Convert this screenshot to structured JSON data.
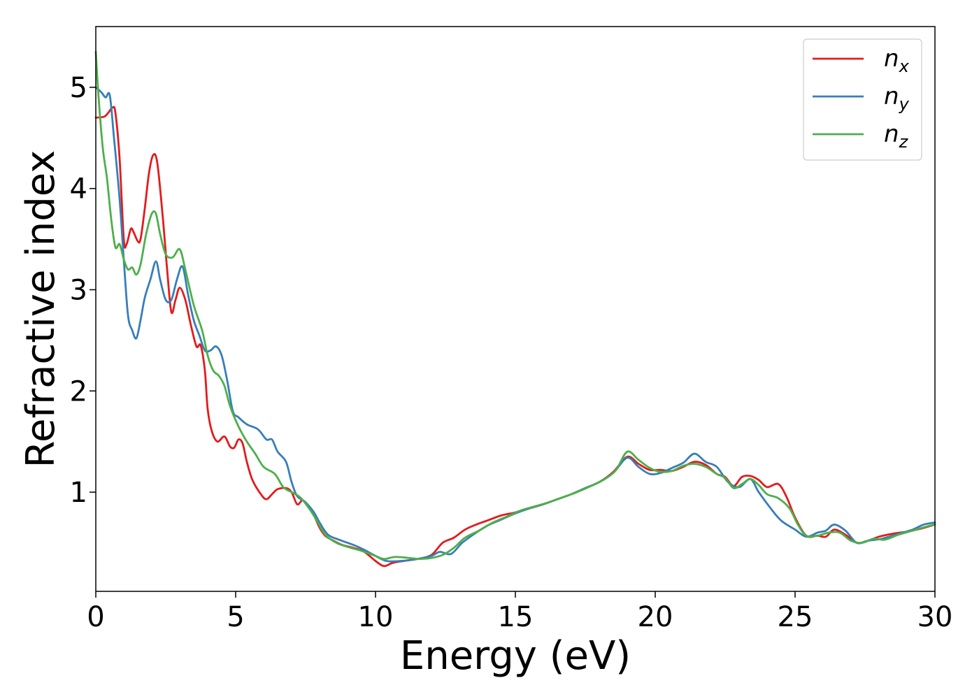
{
  "chart_data": {
    "type": "line",
    "title": "",
    "xlabel": "Energy (eV)",
    "ylabel": "Refractive index",
    "xlim": [
      0,
      30
    ],
    "ylim": [
      0.02,
      5.6
    ],
    "xticks": [
      "0",
      "5",
      "10",
      "15",
      "20",
      "25",
      "30"
    ],
    "yticks": [
      "1",
      "2",
      "3",
      "4",
      "5"
    ],
    "grid": false,
    "legend_position": "top-right",
    "series": [
      {
        "name": "n",
        "subscript": "x",
        "color": "#e41a1c",
        "points": [
          [
            0,
            4.7
          ],
          [
            0.3,
            4.71
          ],
          [
            0.45,
            4.75
          ],
          [
            0.6,
            4.8
          ],
          [
            0.7,
            4.75
          ],
          [
            0.85,
            4.3
          ],
          [
            1.0,
            3.5
          ],
          [
            1.1,
            3.45
          ],
          [
            1.25,
            3.6
          ],
          [
            1.35,
            3.57
          ],
          [
            1.5,
            3.48
          ],
          [
            1.6,
            3.5
          ],
          [
            1.75,
            3.8
          ],
          [
            1.9,
            4.15
          ],
          [
            2.05,
            4.33
          ],
          [
            2.2,
            4.25
          ],
          [
            2.4,
            3.7
          ],
          [
            2.55,
            3.2
          ],
          [
            2.7,
            2.78
          ],
          [
            2.85,
            2.9
          ],
          [
            3.0,
            3.02
          ],
          [
            3.2,
            2.9
          ],
          [
            3.4,
            2.65
          ],
          [
            3.6,
            2.44
          ],
          [
            3.75,
            2.45
          ],
          [
            3.9,
            2.2
          ],
          [
            4.0,
            1.82
          ],
          [
            4.15,
            1.6
          ],
          [
            4.35,
            1.5
          ],
          [
            4.6,
            1.55
          ],
          [
            4.8,
            1.45
          ],
          [
            4.95,
            1.44
          ],
          [
            5.1,
            1.52
          ],
          [
            5.25,
            1.48
          ],
          [
            5.4,
            1.3
          ],
          [
            5.6,
            1.12
          ],
          [
            5.9,
            0.98
          ],
          [
            6.1,
            0.93
          ],
          [
            6.3,
            0.98
          ],
          [
            6.5,
            1.03
          ],
          [
            6.8,
            1.04
          ],
          [
            7.0,
            1.0
          ],
          [
            7.2,
            0.88
          ],
          [
            7.4,
            0.92
          ],
          [
            7.6,
            0.85
          ],
          [
            7.8,
            0.77
          ],
          [
            8.0,
            0.65
          ],
          [
            8.2,
            0.57
          ],
          [
            8.5,
            0.52
          ],
          [
            8.8,
            0.48
          ],
          [
            9.2,
            0.45
          ],
          [
            9.6,
            0.41
          ],
          [
            10.0,
            0.32
          ],
          [
            10.3,
            0.27
          ],
          [
            10.6,
            0.3
          ],
          [
            11.0,
            0.32
          ],
          [
            11.5,
            0.34
          ],
          [
            12.0,
            0.38
          ],
          [
            12.4,
            0.5
          ],
          [
            12.8,
            0.55
          ],
          [
            13.2,
            0.63
          ],
          [
            13.6,
            0.68
          ],
          [
            14.0,
            0.72
          ],
          [
            14.5,
            0.77
          ],
          [
            15.0,
            0.8
          ],
          [
            15.5,
            0.84
          ],
          [
            16.0,
            0.88
          ],
          [
            16.5,
            0.93
          ],
          [
            17.0,
            0.98
          ],
          [
            17.5,
            1.04
          ],
          [
            18.0,
            1.1
          ],
          [
            18.5,
            1.2
          ],
          [
            19.0,
            1.35
          ],
          [
            19.4,
            1.28
          ],
          [
            19.8,
            1.22
          ],
          [
            20.2,
            1.22
          ],
          [
            20.6,
            1.21
          ],
          [
            21.0,
            1.25
          ],
          [
            21.4,
            1.3
          ],
          [
            21.8,
            1.27
          ],
          [
            22.2,
            1.18
          ],
          [
            22.5,
            1.15
          ],
          [
            22.8,
            1.06
          ],
          [
            23.1,
            1.15
          ],
          [
            23.4,
            1.16
          ],
          [
            23.7,
            1.12
          ],
          [
            24.0,
            1.05
          ],
          [
            24.4,
            1.08
          ],
          [
            24.7,
            0.95
          ],
          [
            25.0,
            0.75
          ],
          [
            25.4,
            0.57
          ],
          [
            25.8,
            0.57
          ],
          [
            26.1,
            0.56
          ],
          [
            26.4,
            0.63
          ],
          [
            26.8,
            0.58
          ],
          [
            27.2,
            0.5
          ],
          [
            27.6,
            0.52
          ],
          [
            28.0,
            0.56
          ],
          [
            28.5,
            0.59
          ],
          [
            29.0,
            0.61
          ],
          [
            29.5,
            0.64
          ],
          [
            30.0,
            0.68
          ]
        ]
      },
      {
        "name": "n",
        "subscript": "y",
        "color": "#377eb8",
        "points": [
          [
            0,
            5.0
          ],
          [
            0.2,
            4.95
          ],
          [
            0.35,
            4.9
          ],
          [
            0.5,
            4.92
          ],
          [
            0.65,
            4.5
          ],
          [
            0.85,
            3.9
          ],
          [
            1.0,
            3.3
          ],
          [
            1.15,
            2.75
          ],
          [
            1.3,
            2.6
          ],
          [
            1.45,
            2.52
          ],
          [
            1.6,
            2.7
          ],
          [
            1.75,
            2.92
          ],
          [
            1.95,
            3.1
          ],
          [
            2.15,
            3.28
          ],
          [
            2.3,
            3.1
          ],
          [
            2.5,
            2.9
          ],
          [
            2.7,
            2.9
          ],
          [
            2.9,
            3.1
          ],
          [
            3.1,
            3.23
          ],
          [
            3.3,
            2.95
          ],
          [
            3.5,
            2.7
          ],
          [
            3.7,
            2.55
          ],
          [
            3.9,
            2.4
          ],
          [
            4.1,
            2.4
          ],
          [
            4.3,
            2.44
          ],
          [
            4.5,
            2.35
          ],
          [
            4.7,
            2.1
          ],
          [
            4.9,
            1.8
          ],
          [
            5.1,
            1.74
          ],
          [
            5.4,
            1.67
          ],
          [
            5.8,
            1.62
          ],
          [
            6.1,
            1.52
          ],
          [
            6.3,
            1.52
          ],
          [
            6.5,
            1.4
          ],
          [
            6.8,
            1.3
          ],
          [
            7.0,
            1.1
          ],
          [
            7.2,
            0.96
          ],
          [
            7.5,
            0.9
          ],
          [
            7.8,
            0.8
          ],
          [
            8.0,
            0.7
          ],
          [
            8.3,
            0.58
          ],
          [
            8.7,
            0.53
          ],
          [
            9.2,
            0.48
          ],
          [
            9.6,
            0.43
          ],
          [
            10.0,
            0.37
          ],
          [
            10.4,
            0.32
          ],
          [
            10.9,
            0.32
          ],
          [
            11.5,
            0.34
          ],
          [
            12.0,
            0.37
          ],
          [
            12.3,
            0.41
          ],
          [
            12.7,
            0.39
          ],
          [
            13.1,
            0.5
          ],
          [
            13.6,
            0.6
          ],
          [
            14.0,
            0.67
          ],
          [
            14.5,
            0.73
          ],
          [
            15.0,
            0.79
          ],
          [
            15.5,
            0.84
          ],
          [
            16.0,
            0.88
          ],
          [
            16.5,
            0.93
          ],
          [
            17.0,
            0.98
          ],
          [
            17.5,
            1.04
          ],
          [
            18.0,
            1.1
          ],
          [
            18.5,
            1.19
          ],
          [
            19.0,
            1.34
          ],
          [
            19.4,
            1.25
          ],
          [
            19.8,
            1.18
          ],
          [
            20.2,
            1.19
          ],
          [
            20.6,
            1.24
          ],
          [
            21.0,
            1.29
          ],
          [
            21.4,
            1.38
          ],
          [
            21.8,
            1.3
          ],
          [
            22.2,
            1.25
          ],
          [
            22.6,
            1.1
          ],
          [
            23.0,
            1.05
          ],
          [
            23.4,
            1.13
          ],
          [
            23.7,
            1.0
          ],
          [
            24.1,
            0.85
          ],
          [
            24.5,
            0.72
          ],
          [
            25.0,
            0.63
          ],
          [
            25.4,
            0.56
          ],
          [
            25.8,
            0.6
          ],
          [
            26.1,
            0.62
          ],
          [
            26.4,
            0.68
          ],
          [
            26.8,
            0.62
          ],
          [
            27.2,
            0.5
          ],
          [
            27.6,
            0.52
          ],
          [
            28.1,
            0.54
          ],
          [
            28.6,
            0.58
          ],
          [
            29.2,
            0.63
          ],
          [
            29.6,
            0.68
          ],
          [
            30.0,
            0.7
          ]
        ]
      },
      {
        "name": "n",
        "subscript": "z",
        "color": "#4daf4a",
        "points": [
          [
            0,
            5.35
          ],
          [
            0.1,
            4.9
          ],
          [
            0.25,
            4.4
          ],
          [
            0.4,
            4.1
          ],
          [
            0.55,
            3.7
          ],
          [
            0.7,
            3.42
          ],
          [
            0.85,
            3.45
          ],
          [
            1.0,
            3.3
          ],
          [
            1.15,
            3.2
          ],
          [
            1.3,
            3.22
          ],
          [
            1.45,
            3.15
          ],
          [
            1.6,
            3.25
          ],
          [
            1.8,
            3.55
          ],
          [
            2.0,
            3.75
          ],
          [
            2.15,
            3.75
          ],
          [
            2.3,
            3.55
          ],
          [
            2.5,
            3.35
          ],
          [
            2.75,
            3.32
          ],
          [
            3.0,
            3.4
          ],
          [
            3.2,
            3.2
          ],
          [
            3.5,
            2.85
          ],
          [
            3.8,
            2.6
          ],
          [
            4.0,
            2.35
          ],
          [
            4.2,
            2.2
          ],
          [
            4.4,
            2.15
          ],
          [
            4.6,
            2.05
          ],
          [
            4.8,
            1.85
          ],
          [
            5.1,
            1.65
          ],
          [
            5.4,
            1.5
          ],
          [
            5.7,
            1.38
          ],
          [
            6.0,
            1.25
          ],
          [
            6.4,
            1.18
          ],
          [
            6.7,
            1.05
          ],
          [
            7.0,
            1.0
          ],
          [
            7.3,
            0.95
          ],
          [
            7.6,
            0.85
          ],
          [
            7.9,
            0.72
          ],
          [
            8.2,
            0.58
          ],
          [
            8.6,
            0.5
          ],
          [
            9.0,
            0.46
          ],
          [
            9.5,
            0.42
          ],
          [
            10.0,
            0.37
          ],
          [
            10.3,
            0.34
          ],
          [
            10.7,
            0.36
          ],
          [
            11.2,
            0.35
          ],
          [
            11.6,
            0.34
          ],
          [
            12.0,
            0.35
          ],
          [
            12.4,
            0.38
          ],
          [
            12.8,
            0.45
          ],
          [
            13.2,
            0.55
          ],
          [
            13.7,
            0.62
          ],
          [
            14.2,
            0.7
          ],
          [
            14.7,
            0.76
          ],
          [
            15.2,
            0.82
          ],
          [
            15.7,
            0.86
          ],
          [
            16.2,
            0.9
          ],
          [
            16.7,
            0.95
          ],
          [
            17.2,
            1.0
          ],
          [
            17.7,
            1.06
          ],
          [
            18.2,
            1.13
          ],
          [
            18.6,
            1.22
          ],
          [
            19.0,
            1.4
          ],
          [
            19.4,
            1.32
          ],
          [
            19.8,
            1.24
          ],
          [
            20.2,
            1.2
          ],
          [
            20.6,
            1.21
          ],
          [
            21.0,
            1.26
          ],
          [
            21.4,
            1.28
          ],
          [
            21.8,
            1.25
          ],
          [
            22.2,
            1.18
          ],
          [
            22.5,
            1.14
          ],
          [
            22.8,
            1.04
          ],
          [
            23.1,
            1.08
          ],
          [
            23.4,
            1.13
          ],
          [
            23.7,
            1.07
          ],
          [
            24.0,
            0.98
          ],
          [
            24.4,
            0.94
          ],
          [
            24.8,
            0.84
          ],
          [
            25.1,
            0.68
          ],
          [
            25.4,
            0.57
          ],
          [
            25.8,
            0.57
          ],
          [
            26.2,
            0.6
          ],
          [
            26.6,
            0.6
          ],
          [
            27.0,
            0.52
          ],
          [
            27.4,
            0.5
          ],
          [
            27.8,
            0.54
          ],
          [
            28.2,
            0.53
          ],
          [
            28.7,
            0.58
          ],
          [
            29.2,
            0.62
          ],
          [
            29.7,
            0.66
          ],
          [
            30.0,
            0.68
          ]
        ]
      }
    ]
  }
}
